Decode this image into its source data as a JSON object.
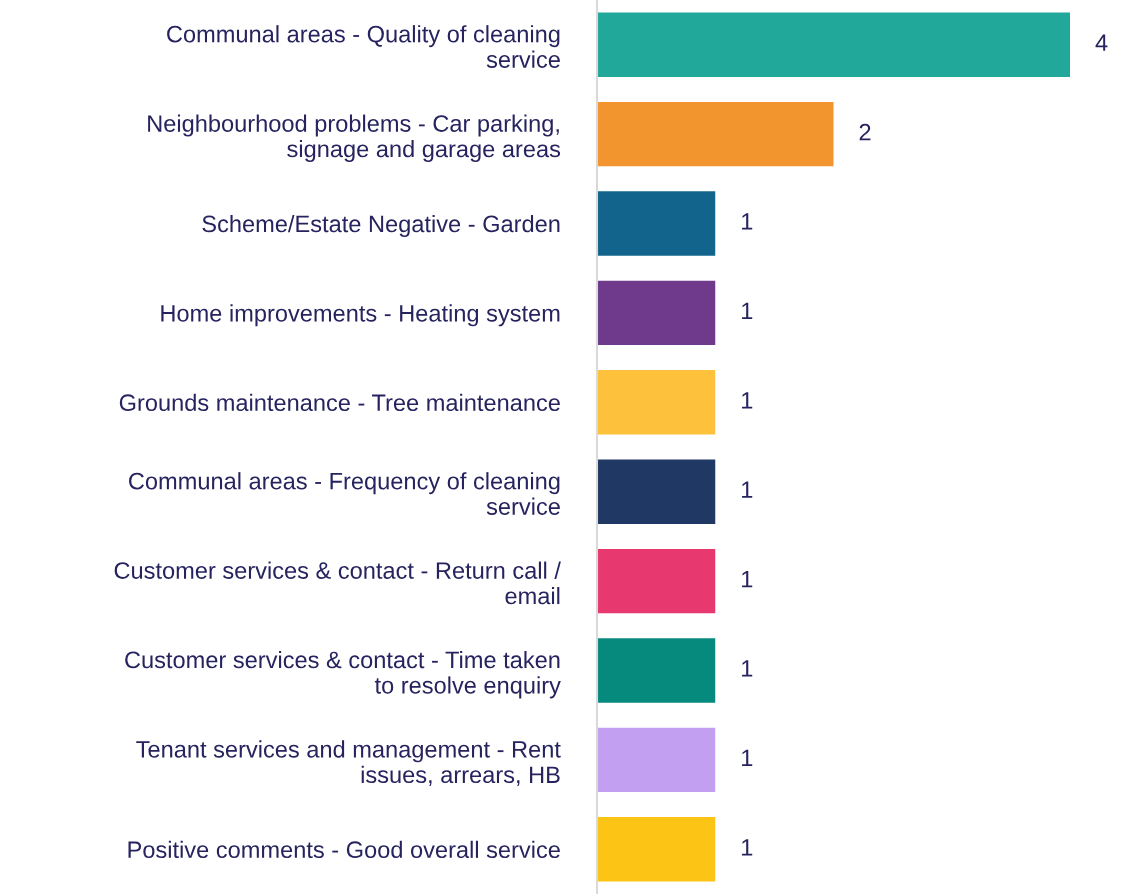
{
  "chart_data": {
    "type": "bar",
    "orientation": "horizontal",
    "data_labels": true,
    "tick_labels": "y",
    "grid": false,
    "legend": false,
    "categories": [
      "Communal areas - Quality of cleaning\nservice",
      "Neighbourhood problems - Car parking,\nsignage and garage areas",
      "Scheme/Estate Negative - Garden",
      "Home improvements - Heating system",
      "Grounds maintenance - Tree maintenance",
      "Communal areas - Frequency of cleaning\nservice",
      "Customer services & contact - Return call /\nemail",
      "Customer services & contact - Time taken\nto resolve enquiry",
      "Tenant services and management - Rent\nissues, arrears, HB",
      "Positive comments - Good overall service"
    ],
    "values": [
      4,
      2,
      1,
      1,
      1,
      1,
      1,
      1,
      1,
      1
    ],
    "colors": [
      "#22a89a",
      "#f3952f",
      "#12648c",
      "#6f3a8c",
      "#fdc13c",
      "#203864",
      "#e83870",
      "#078a7e",
      "#c39ff2",
      "#fcc414"
    ]
  }
}
